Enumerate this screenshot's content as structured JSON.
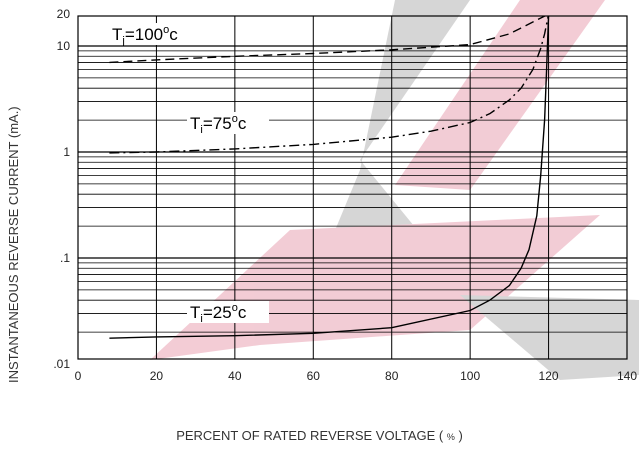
{
  "chart_data": {
    "type": "line",
    "xlabel": "PERCENT OF RATED REVERSE VOLTAGE",
    "xlabel_unit": "%",
    "ylabel": "INSTANTANEOUS REVERSE CURRENT (mA.)",
    "xlim": [
      0,
      140
    ],
    "ylim": [
      0.01,
      20
    ],
    "y_scale": "log",
    "x_ticks": [
      "0",
      "20",
      "40",
      "60",
      "80",
      "100",
      "120",
      "140"
    ],
    "y_ticks": [
      {
        "value": 0.01,
        "label": ".01"
      },
      {
        "value": 0.1,
        "label": ".1"
      },
      {
        "value": 1,
        "label": "1"
      },
      {
        "value": 10,
        "label": "10"
      },
      {
        "value": 20,
        "label": "20"
      }
    ],
    "grid": true,
    "series": [
      {
        "name": "Tj=100°c",
        "label": {
          "pre": "T",
          "sub": "j",
          "mid": "=100",
          "sup": "o",
          "post": "c"
        },
        "dash": "dashed",
        "x": [
          8,
          20,
          40,
          60,
          80,
          100,
          110,
          120
        ],
        "y": [
          7.0,
          7.4,
          8.0,
          8.5,
          9.2,
          10.3,
          13.0,
          20.0
        ]
      },
      {
        "name": "Ti=75°c",
        "label": {
          "pre": "T",
          "sub": "i",
          "mid": "=75",
          "sup": "o",
          "post": "c"
        },
        "dash": "dashdot",
        "x": [
          8,
          20,
          40,
          60,
          80,
          90,
          100,
          105,
          110,
          113,
          116,
          118,
          119,
          120
        ],
        "y": [
          0.98,
          1.0,
          1.07,
          1.18,
          1.38,
          1.57,
          1.9,
          2.3,
          3.1,
          4.0,
          6.0,
          9.5,
          13.0,
          20.0
        ]
      },
      {
        "name": "Ti=25°c",
        "label": {
          "pre": "T",
          "sub": "i",
          "mid": "=25",
          "sup": "o",
          "post": "c"
        },
        "dash": "solid",
        "x": [
          8,
          20,
          40,
          60,
          80,
          100,
          105,
          110,
          113,
          115,
          117,
          118,
          119,
          119.5,
          120
        ],
        "y": [
          0.0175,
          0.018,
          0.0185,
          0.0195,
          0.022,
          0.032,
          0.04,
          0.055,
          0.08,
          0.12,
          0.25,
          0.6,
          2.0,
          6.0,
          20.0
        ]
      }
    ]
  }
}
